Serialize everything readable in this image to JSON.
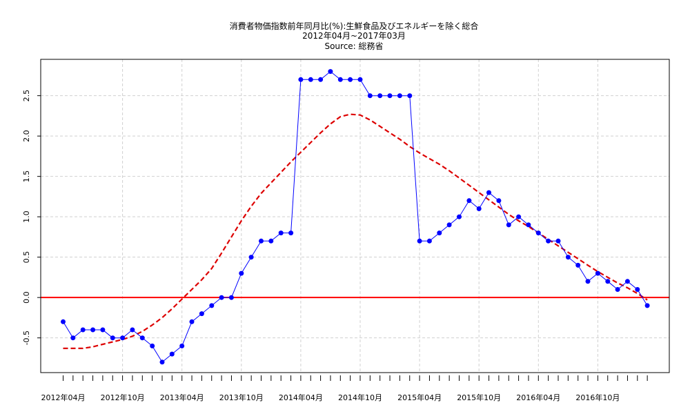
{
  "chart_data": {
    "type": "line",
    "title": "消費者物価指数前年同月比(%):生鮮食品及びエネルギーを除く総合",
    "subtitle": "2012年04月~2017年03月",
    "source": "Source: 総務省",
    "ylim": [
      -0.93,
      2.95
    ],
    "grid": true,
    "y_ticks": [
      "-0.5",
      "0.0",
      "0.5",
      "1.0",
      "1.5",
      "2.0",
      "2.5"
    ],
    "y_tick_values": [
      -0.5,
      0.0,
      0.5,
      1.0,
      1.5,
      2.0,
      2.5
    ],
    "x_tick_labels": [
      "2012年04月",
      "2012年10月",
      "2013年04月",
      "2013年10月",
      "2014年04月",
      "2014年10月",
      "2015年04月",
      "2015年10月",
      "2016年04月",
      "2016年10月"
    ],
    "x_tick_label_months": [
      0,
      6,
      12,
      18,
      24,
      30,
      36,
      42,
      48,
      54
    ],
    "months": [
      "2012-04",
      "2012-05",
      "2012-06",
      "2012-07",
      "2012-08",
      "2012-09",
      "2012-10",
      "2012-11",
      "2012-12",
      "2013-01",
      "2013-02",
      "2013-03",
      "2013-04",
      "2013-05",
      "2013-06",
      "2013-07",
      "2013-08",
      "2013-09",
      "2013-10",
      "2013-11",
      "2013-12",
      "2014-01",
      "2014-02",
      "2014-03",
      "2014-04",
      "2014-05",
      "2014-06",
      "2014-07",
      "2014-08",
      "2014-09",
      "2014-10",
      "2014-11",
      "2014-12",
      "2015-01",
      "2015-02",
      "2015-03",
      "2015-04",
      "2015-05",
      "2015-06",
      "2015-07",
      "2015-08",
      "2015-09",
      "2015-10",
      "2015-11",
      "2015-12",
      "2016-01",
      "2016-02",
      "2016-03",
      "2016-04",
      "2016-05",
      "2016-06",
      "2016-07",
      "2016-08",
      "2016-09",
      "2016-10",
      "2016-11",
      "2016-12",
      "2017-01",
      "2017-02",
      "2017-03"
    ],
    "series": [
      {
        "type": "line",
        "color": "#0000ff",
        "marker": "circle",
        "values": [
          -0.3,
          -0.5,
          -0.4,
          -0.4,
          -0.4,
          -0.5,
          -0.5,
          -0.4,
          -0.5,
          -0.6,
          -0.8,
          -0.7,
          -0.6,
          -0.3,
          -0.2,
          -0.1,
          0.0,
          0.0,
          0.3,
          0.5,
          0.7,
          0.7,
          0.8,
          0.8,
          2.7,
          2.7,
          2.7,
          2.8,
          2.7,
          2.7,
          2.7,
          2.5,
          2.5,
          2.5,
          2.5,
          2.5,
          0.7,
          0.7,
          0.8,
          0.9,
          1.0,
          1.2,
          1.1,
          1.3,
          1.2,
          0.9,
          1.0,
          0.9,
          0.8,
          0.7,
          0.7,
          0.5,
          0.4,
          0.2,
          0.3,
          0.2,
          0.1,
          0.2,
          0.1,
          -0.1
        ]
      },
      {
        "type": "smooth",
        "color": "#dd0000",
        "dashed": true,
        "values": [
          -0.63,
          -0.63,
          -0.63,
          -0.61,
          -0.58,
          -0.55,
          -0.52,
          -0.48,
          -0.42,
          -0.34,
          -0.25,
          -0.14,
          -0.02,
          0.1,
          0.22,
          0.36,
          0.55,
          0.75,
          0.95,
          1.13,
          1.29,
          1.42,
          1.55,
          1.68,
          1.8,
          1.92,
          2.04,
          2.15,
          2.24,
          2.27,
          2.26,
          2.2,
          2.12,
          2.04,
          1.96,
          1.87,
          1.79,
          1.72,
          1.65,
          1.57,
          1.48,
          1.39,
          1.3,
          1.21,
          1.12,
          1.03,
          0.95,
          0.88,
          0.8,
          0.72,
          0.64,
          0.56,
          0.48,
          0.4,
          0.32,
          0.25,
          0.18,
          0.12,
          0.05,
          -0.03
        ]
      }
    ],
    "reference_line": {
      "y": 0.0,
      "color": "#ff0000"
    }
  }
}
